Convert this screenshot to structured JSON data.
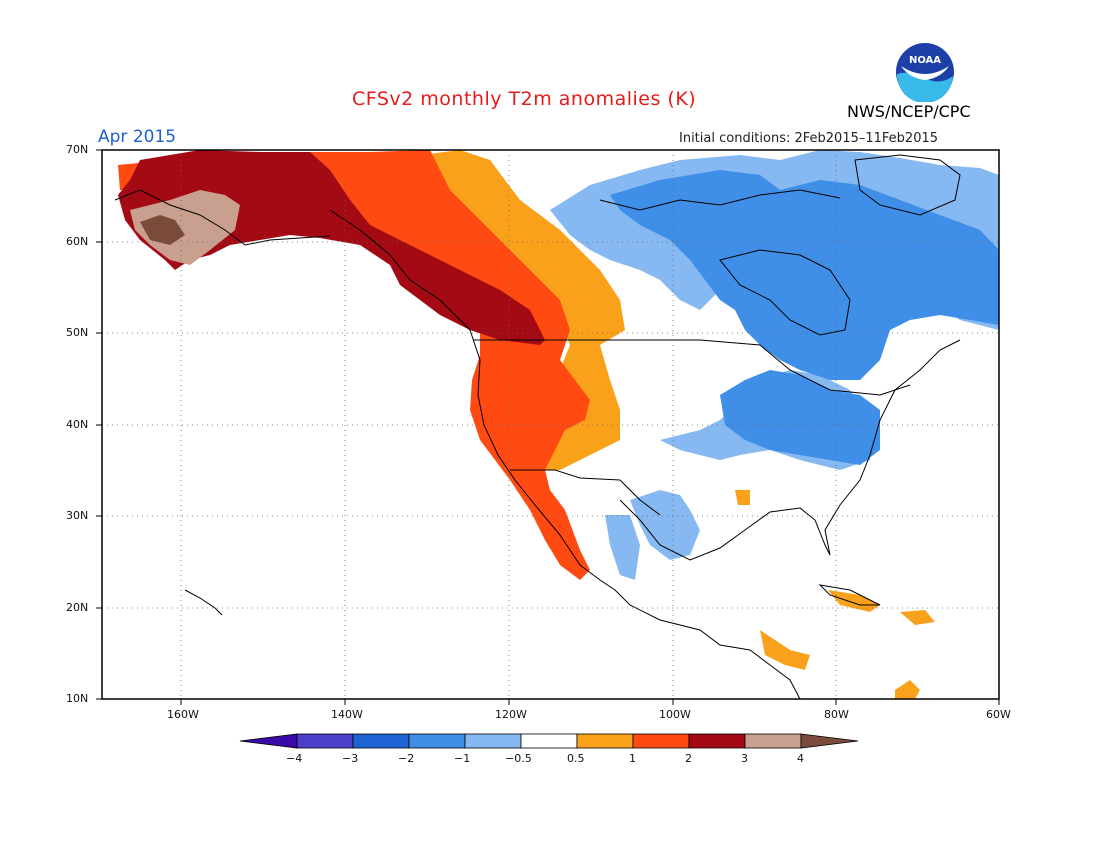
{
  "title": "CFSv2 monthly T2m anomalies (K)",
  "period": "Apr 2015",
  "initial_conditions": "Initial conditions: 2Feb2015–11Feb2015",
  "agency": "NWS/NCEP/CPC",
  "logo_text": "NOAA",
  "latitude_labels": [
    "70N",
    "60N",
    "50N",
    "40N",
    "30N",
    "20N",
    "10N"
  ],
  "longitude_labels": [
    "160W",
    "140W",
    "120W",
    "100W",
    "80W",
    "60W"
  ],
  "colorbar": {
    "ticks": [
      "−4",
      "−3",
      "−2",
      "−1",
      "−0.5",
      "0.5",
      "1",
      "2",
      "3",
      "4"
    ],
    "colors": [
      "#3a0aa8",
      "#4b3fc9",
      "#1f63d4",
      "#3f8ee8",
      "#86b8f2",
      "#ffffff",
      "#f9a11b",
      "#ff4a12",
      "#a30a14",
      "#c9a08f",
      "#7a4a3a"
    ]
  },
  "map_data": {
    "lon_range": [
      -172,
      -60
    ],
    "lat_range": [
      10,
      70
    ],
    "anomaly_regions": [
      {
        "category": "3 to 4",
        "color": "#c9a08f",
        "area": "Western Alaska / Bering coast"
      },
      {
        "category": "> 4",
        "color": "#7a4a3a",
        "area": "Southwest Alaska coast"
      },
      {
        "category": "2 to 3",
        "color": "#a30a14",
        "area": "Alaska interior, Yukon, British Columbia"
      },
      {
        "category": "1 to 2",
        "color": "#ff4a12",
        "area": "Northwest Canada, Pacific coast US, Baja California"
      },
      {
        "category": "0.5 to 1",
        "color": "#f9a11b",
        "area": "Inland West US, Mexico plateau, Caribbean islands"
      },
      {
        "category": "-1 to -0.5",
        "color": "#86b8f2",
        "area": "Northern Canada, Great Plains, Texas, Mexico"
      },
      {
        "category": "-2 to -1",
        "color": "#3f8ee8",
        "area": "Hudson Bay, Quebec, Great Lakes, Eastern US"
      }
    ]
  }
}
